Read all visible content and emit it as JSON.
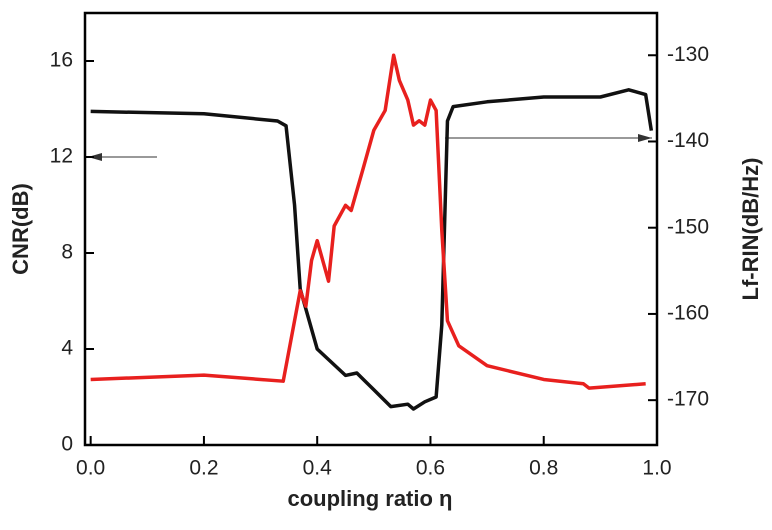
{
  "chart_data": {
    "type": "line",
    "x_label": "coupling ratio η",
    "y_label": "CNR(dB)",
    "y2_label": "Lf-RIN(dB/Hz)",
    "xlim": [
      -0.01,
      1.0
    ],
    "xticks": [
      {
        "value": 0,
        "label": "0.0"
      },
      {
        "value": 0.2,
        "label": "0.2"
      },
      {
        "value": 0.4,
        "label": "0.4"
      },
      {
        "value": 0.6,
        "label": "0.6"
      },
      {
        "value": 0.8,
        "label": "0.8"
      },
      {
        "value": 1,
        "label": "1.0"
      }
    ],
    "ylim": [
      0,
      18
    ],
    "yticks": [
      0,
      4,
      8,
      12,
      16
    ],
    "y2lim": [
      -175.2,
      -125.1
    ],
    "y2ticks": [
      -170,
      -160,
      -150,
      -140,
      -130
    ],
    "series": [
      {
        "color": "#111111",
        "axis": "y",
        "x": [
          0,
          0.2,
          0.33,
          0.345,
          0.36,
          0.37,
          0.4,
          0.45,
          0.47,
          0.5,
          0.53,
          0.56,
          0.57,
          0.59,
          0.61,
          0.62,
          0.63,
          0.64,
          0.7,
          0.8,
          0.9,
          0.95,
          0.98,
          0.99
        ],
        "values": [
          13.9,
          13.8,
          13.5,
          13.3,
          10,
          6.5,
          4.0,
          2.9,
          3.0,
          2.3,
          1.6,
          1.7,
          1.5,
          1.8,
          2.0,
          5,
          13.5,
          14.1,
          14.3,
          14.5,
          14.5,
          14.8,
          14.6,
          13.1
        ]
      },
      {
        "color": "#e8201e",
        "axis": "y2",
        "x": [
          0,
          0.2,
          0.34,
          0.36,
          0.37,
          0.38,
          0.39,
          0.4,
          0.42,
          0.43,
          0.45,
          0.46,
          0.47,
          0.48,
          0.5,
          0.52,
          0.535,
          0.545,
          0.56,
          0.57,
          0.58,
          0.59,
          0.6,
          0.61,
          0.62,
          0.63,
          0.65,
          0.7,
          0.8,
          0.87,
          0.88,
          0.98
        ],
        "values": [
          -167.6,
          -167.1,
          -167.8,
          -160.8,
          -157.3,
          -159.1,
          -153.8,
          -151.5,
          -156.2,
          -149.8,
          -147.4,
          -148,
          -145.7,
          -143.4,
          -138.7,
          -136.4,
          -130,
          -132.9,
          -135.2,
          -138.1,
          -137.6,
          -138.1,
          -135.2,
          -136.4,
          -150.3,
          -160.8,
          -163.7,
          -166,
          -167.6,
          -168.1,
          -168.6,
          -168.1
        ]
      }
    ]
  }
}
